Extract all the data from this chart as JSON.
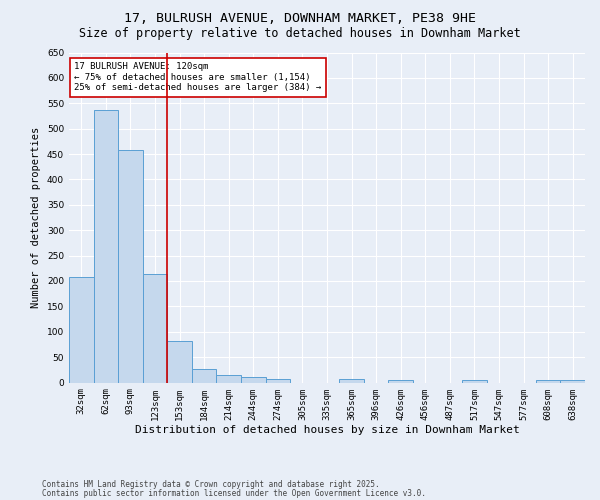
{
  "title": "17, BULRUSH AVENUE, DOWNHAM MARKET, PE38 9HE",
  "subtitle": "Size of property relative to detached houses in Downham Market",
  "xlabel": "Distribution of detached houses by size in Downham Market",
  "ylabel": "Number of detached properties",
  "footnote1": "Contains HM Land Registry data © Crown copyright and database right 2025.",
  "footnote2": "Contains public sector information licensed under the Open Government Licence v3.0.",
  "categories": [
    "32sqm",
    "62sqm",
    "93sqm",
    "123sqm",
    "153sqm",
    "184sqm",
    "214sqm",
    "244sqm",
    "274sqm",
    "305sqm",
    "335sqm",
    "365sqm",
    "396sqm",
    "426sqm",
    "456sqm",
    "487sqm",
    "517sqm",
    "547sqm",
    "577sqm",
    "608sqm",
    "638sqm"
  ],
  "values": [
    207,
    536,
    457,
    213,
    81,
    26,
    15,
    11,
    6,
    0,
    0,
    7,
    0,
    4,
    0,
    0,
    4,
    0,
    0,
    4,
    5
  ],
  "bar_color": "#c5d8ed",
  "bar_edge_color": "#5a9fd4",
  "red_line_x": 3.5,
  "annotation_text": "17 BULRUSH AVENUE: 120sqm\n← 75% of detached houses are smaller (1,154)\n25% of semi-detached houses are larger (384) →",
  "annotation_box_color": "#ffffff",
  "annotation_box_edge": "#cc0000",
  "ylim": [
    0,
    650
  ],
  "yticks": [
    0,
    50,
    100,
    150,
    200,
    250,
    300,
    350,
    400,
    450,
    500,
    550,
    600,
    650
  ],
  "background_color": "#e8eef7",
  "grid_color": "#ffffff",
  "title_fontsize": 9.5,
  "subtitle_fontsize": 8.5,
  "axis_label_fontsize": 7.5,
  "tick_fontsize": 6.5,
  "annotation_fontsize": 6.5,
  "footnote_fontsize": 5.5
}
